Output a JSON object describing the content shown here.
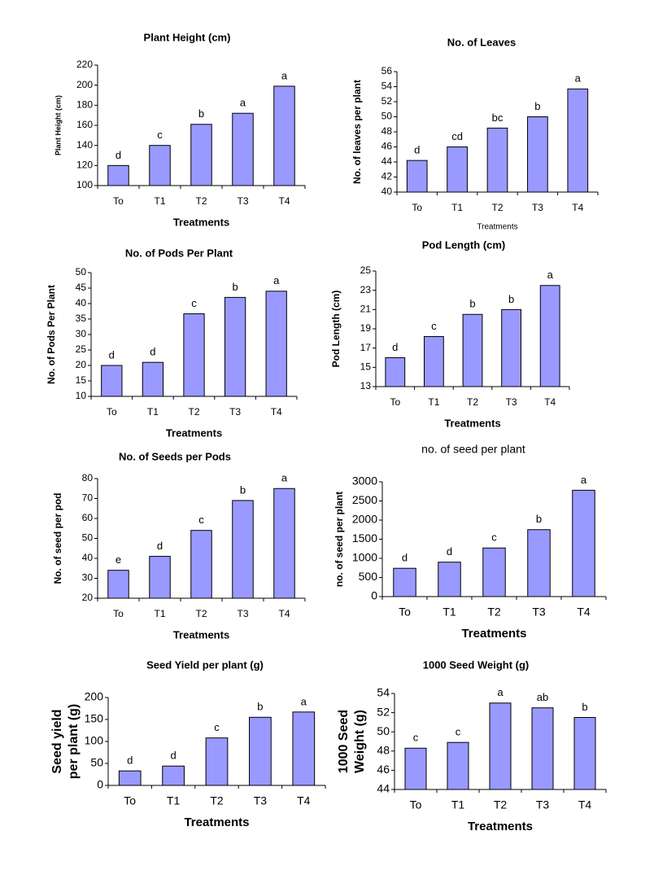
{
  "chart_data": [
    {
      "type": "bar",
      "title": "Plant Height (cm)",
      "xlabel": "Treatments",
      "ylabel": [
        "Plant Height (cm)"
      ],
      "categories": [
        "To",
        "T1",
        "T2",
        "T3",
        "T4"
      ],
      "values": [
        120,
        140,
        161,
        172,
        199
      ],
      "letters": [
        "d",
        "c",
        "b",
        "a",
        "a"
      ],
      "color": "#9999ff",
      "ylim": [
        100,
        220
      ],
      "yticks": [
        100,
        120,
        140,
        160,
        180,
        200,
        220
      ]
    },
    {
      "type": "bar",
      "title": "No. of Leaves",
      "xlabel": "Treatments",
      "ylabel": [
        "No. of leaves per plant"
      ],
      "categories": [
        "To",
        "T1",
        "T2",
        "T3",
        "T4"
      ],
      "values": [
        44.2,
        46,
        48.5,
        50,
        53.7
      ],
      "letters": [
        "d",
        "cd",
        "bc",
        "b",
        "a"
      ],
      "color": "#9999ff",
      "ylim": [
        40,
        56
      ],
      "yticks": [
        40,
        42,
        44,
        46,
        48,
        50,
        52,
        54,
        56
      ]
    },
    {
      "type": "bar",
      "title": "No. of Pods Per Plant",
      "xlabel": "Treatments",
      "ylabel": [
        "No. of Pods Per Plant"
      ],
      "categories": [
        "To",
        "T1",
        "T2",
        "T3",
        "T4"
      ],
      "values": [
        20,
        21,
        36.7,
        42,
        44
      ],
      "letters": [
        "d",
        "d",
        "c",
        "b",
        "a"
      ],
      "color": "#9999ff",
      "ylim": [
        10,
        50
      ],
      "yticks": [
        10,
        15,
        20,
        25,
        30,
        35,
        40,
        45,
        50
      ]
    },
    {
      "type": "bar",
      "title": "Pod Length (cm)",
      "xlabel": "Treatments",
      "ylabel": [
        "Pod Length (cm)"
      ],
      "categories": [
        "To",
        "T1",
        "T2",
        "T3",
        "T4"
      ],
      "values": [
        16,
        18.2,
        20.5,
        21,
        23.5
      ],
      "letters": [
        "d",
        "c",
        "b",
        "b",
        "a"
      ],
      "color": "#9999ff",
      "ylim": [
        13,
        25
      ],
      "yticks": [
        13,
        15,
        17,
        19,
        21,
        23,
        25
      ]
    },
    {
      "type": "bar",
      "title": "No. of Seeds per Pods",
      "xlabel": "Treatments",
      "ylabel": [
        "No. of seed per pod"
      ],
      "categories": [
        "To",
        "T1",
        "T2",
        "T3",
        "T4"
      ],
      "values": [
        34,
        41,
        54,
        69,
        75
      ],
      "letters": [
        "e",
        "d",
        "c",
        "b",
        "a"
      ],
      "color": "#9999ff",
      "ylim": [
        20,
        80
      ],
      "yticks": [
        20,
        30,
        40,
        50,
        60,
        70,
        80
      ]
    },
    {
      "type": "bar",
      "title": "no. of seed per plant",
      "xlabel": "Treatments",
      "ylabel": [
        "no. of seed per plant"
      ],
      "categories": [
        "To",
        "T1",
        "T2",
        "T3",
        "T4"
      ],
      "values": [
        740,
        900,
        1270,
        1750,
        2780
      ],
      "letters": [
        "d",
        "d",
        "c",
        "b",
        "a"
      ],
      "color": "#9999ff",
      "ylim": [
        0,
        3000
      ],
      "yticks": [
        0,
        500,
        1000,
        1500,
        2000,
        2500,
        3000
      ]
    },
    {
      "type": "bar",
      "title": "Seed Yield per plant (g)",
      "xlabel": "Treatments",
      "ylabel": [
        "Seed yield",
        "per plant (g)"
      ],
      "categories": [
        "To",
        "T1",
        "T2",
        "T3",
        "T4"
      ],
      "values": [
        33,
        44,
        108,
        155,
        167
      ],
      "letters": [
        "d",
        "d",
        "c",
        "b",
        "a"
      ],
      "color": "#9999ff",
      "ylim": [
        0,
        200
      ],
      "yticks": [
        0,
        50,
        100,
        150,
        200
      ]
    },
    {
      "type": "bar",
      "title": "1000 Seed Weight (g)",
      "xlabel": "Treatments",
      "ylabel": [
        "1000 Seed",
        "Weight (g)"
      ],
      "categories": [
        "To",
        "T1",
        "T2",
        "T3",
        "T4"
      ],
      "values": [
        48.3,
        48.9,
        53,
        52.5,
        51.5
      ],
      "letters": [
        "c",
        "c",
        "a",
        "ab",
        "b"
      ],
      "color": "#9999ff",
      "ylim": [
        44,
        54
      ],
      "yticks": [
        44,
        46,
        48,
        50,
        52,
        54
      ]
    }
  ]
}
